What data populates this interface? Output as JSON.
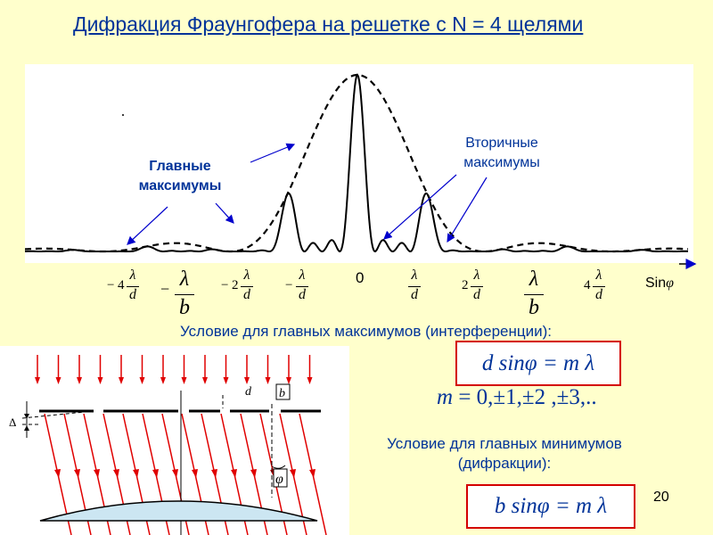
{
  "title": "Дифракция Фраунгофера на решетке с N = 4 щелями",
  "graph": {
    "label_main": [
      "Главные",
      "максимумы"
    ],
    "label_secondary": [
      "Вторичные",
      "максимумы"
    ],
    "axis_zero": "0",
    "axis_label": "Sin",
    "axis_label_sym": "φ",
    "ticks": [
      {
        "sign": "−",
        "coef": "4",
        "num": "λ",
        "den": "d"
      },
      {
        "sign": "−",
        "coef": "",
        "num": "λ",
        "den": "b"
      },
      {
        "sign": "−",
        "coef": "2",
        "num": "λ",
        "den": "d"
      },
      {
        "sign": "−",
        "coef": "",
        "num": "λ",
        "den": "d"
      },
      {
        "sign": "",
        "coef": "",
        "num": "λ",
        "den": "d"
      },
      {
        "sign": "",
        "coef": "2",
        "num": "λ",
        "den": "d"
      },
      {
        "sign": "",
        "coef": "",
        "num": "λ",
        "den": "b"
      },
      {
        "sign": "",
        "coef": "4",
        "num": "λ",
        "den": "d"
      }
    ]
  },
  "condition_max": "Условие для главных максимумов (интерференции):",
  "formula_max": "d sinφ = m λ",
  "m_symbol": "m",
  "m_values": " = 0,±1,±2 ,±3,..",
  "condition_min": [
    "Условие для главных минимумов",
    "(дифракции):"
  ],
  "formula_min": "b sinφ = m λ",
  "diagram": {
    "label_d": "d",
    "label_b": "b",
    "label_phi": "φ",
    "label_delta": "Δ"
  },
  "page_number": "20",
  "colors": {
    "title": "#003399",
    "rays": "#e00000",
    "box_border": "#d40000",
    "background": "#ffffcc"
  }
}
